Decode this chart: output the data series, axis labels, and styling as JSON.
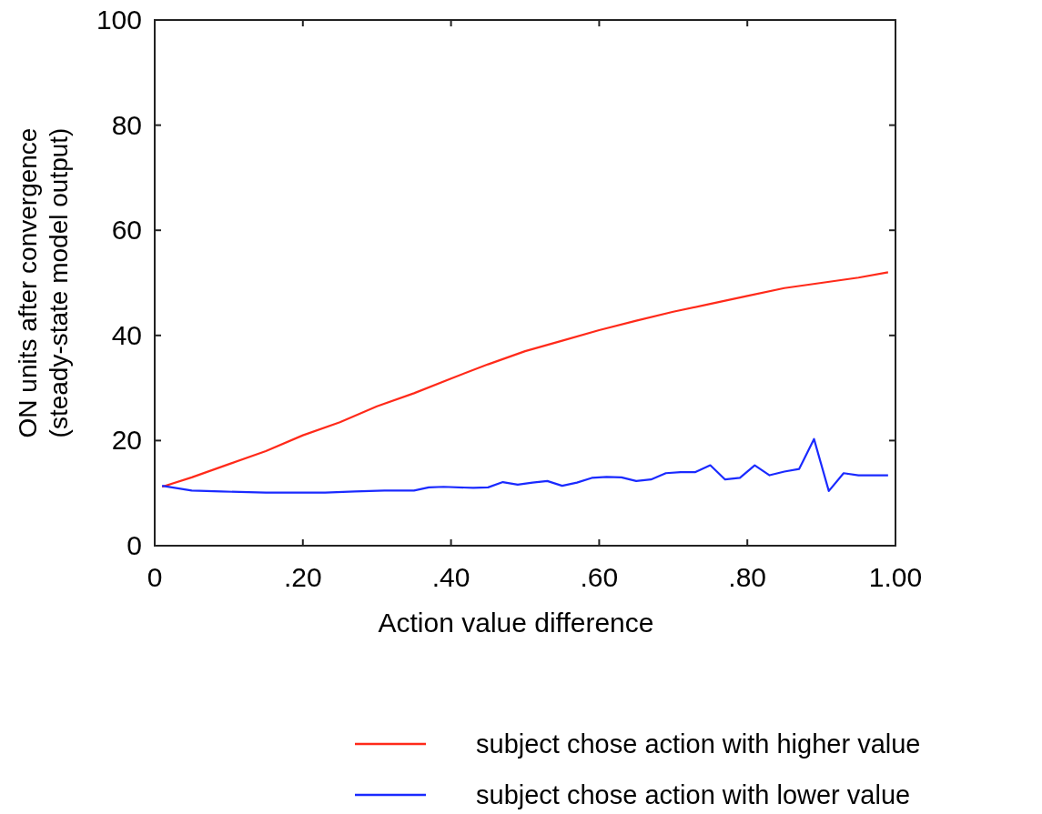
{
  "chart_data": {
    "type": "line",
    "xlabel": "Action value difference",
    "ylabel": "ON units after convergence\n(steady-state model output)",
    "xlim": [
      0,
      1
    ],
    "ylim": [
      0,
      100
    ],
    "xticks": [
      {
        "value": 0,
        "label": "0"
      },
      {
        "value": 0.2,
        "label": ".20"
      },
      {
        "value": 0.4,
        "label": ".40"
      },
      {
        "value": 0.6,
        "label": ".60"
      },
      {
        "value": 0.8,
        "label": ".80"
      },
      {
        "value": 1,
        "label": "1.00"
      }
    ],
    "yticks": [
      0,
      20,
      40,
      60,
      80,
      100
    ],
    "grid": false,
    "legend": "bottom right",
    "series": [
      {
        "name": "subject chose action with higher value",
        "color": "#ff2a1a",
        "x": [
          0.01,
          0.05,
          0.1,
          0.15,
          0.2,
          0.25,
          0.3,
          0.35,
          0.4,
          0.45,
          0.5,
          0.55,
          0.6,
          0.65,
          0.7,
          0.75,
          0.8,
          0.85,
          0.9,
          0.95,
          0.99
        ],
        "values": [
          11.2,
          13,
          15.5,
          18,
          21,
          23.5,
          26.5,
          29,
          31.8,
          34.5,
          37,
          39,
          41,
          42.8,
          44.5,
          46,
          47.5,
          49,
          50,
          51,
          52
        ]
      },
      {
        "name": "subject chose action with lower value",
        "color": "#1a2aff",
        "x": [
          0.01,
          0.05,
          0.09,
          0.15,
          0.23,
          0.27,
          0.31,
          0.35,
          0.37,
          0.39,
          0.43,
          0.45,
          0.47,
          0.49,
          0.51,
          0.53,
          0.55,
          0.57,
          0.59,
          0.61,
          0.63,
          0.65,
          0.67,
          0.69,
          0.71,
          0.73,
          0.75,
          0.77,
          0.79,
          0.81,
          0.83,
          0.85,
          0.87,
          0.89,
          0.91,
          0.93,
          0.95,
          0.99
        ],
        "values": [
          11.4,
          10.5,
          10.3,
          10.1,
          10.1,
          10.3,
          10.5,
          10.5,
          11.1,
          11.2,
          11,
          11.1,
          12.1,
          11.6,
          12,
          12.3,
          11.4,
          12,
          12.9,
          13.1,
          13,
          12.3,
          12.6,
          13.8,
          14,
          14,
          15.3,
          12.6,
          12.9,
          15.3,
          13.4,
          14.1,
          14.6,
          20.3,
          10.4,
          13.8,
          13.4,
          13.4
        ]
      }
    ]
  }
}
